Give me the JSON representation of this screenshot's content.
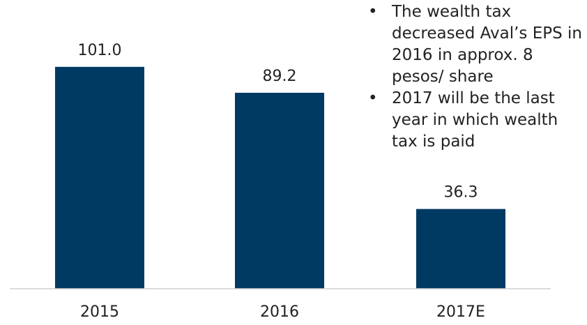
{
  "chart_data": {
    "type": "bar",
    "categories": [
      "2015",
      "2016",
      "2017E"
    ],
    "values": [
      101.0,
      89.2,
      36.3
    ],
    "value_labels": [
      "101.0",
      "89.2",
      "36.3"
    ],
    "title": "",
    "xlabel": "",
    "ylabel": "",
    "ylim": [
      0,
      120
    ],
    "grid": false,
    "legend": "none",
    "bar_color": "#003a63",
    "axis_color": "#d0d0d0",
    "label_color": "#222222"
  },
  "notes": [
    {
      "bullet": "•",
      "text": "The wealth tax decreased Aval’s EPS in 2016 in approx. 8 pesos/ share"
    },
    {
      "bullet": "•",
      "text": "2017 will be the last year in which wealth tax is paid"
    }
  ]
}
